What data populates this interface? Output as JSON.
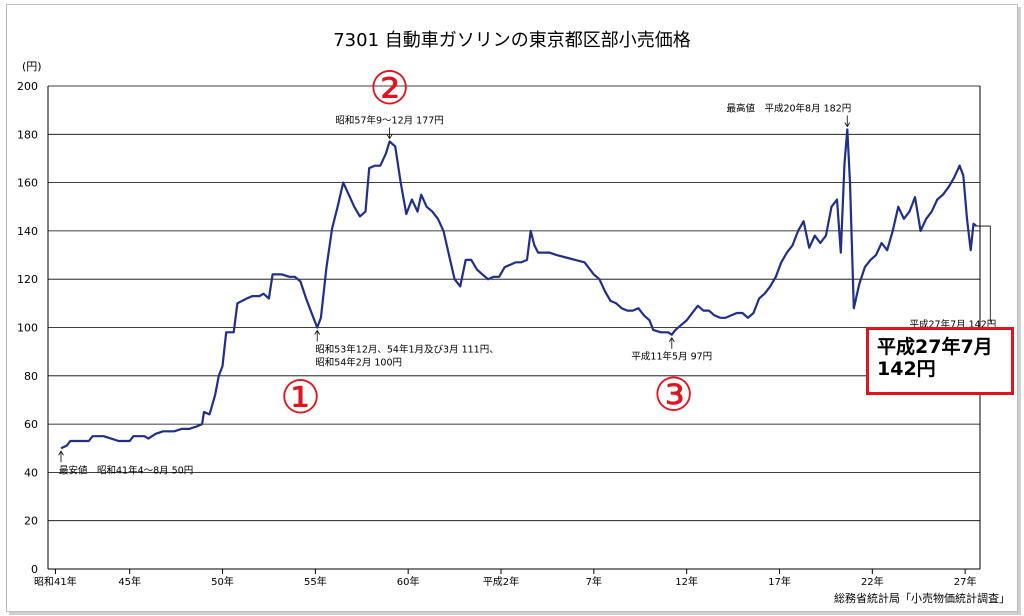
{
  "chart_data": {
    "type": "line",
    "title": "7301 自動車ガソリンの東京都区部小売価格",
    "ylabel": "(円)",
    "ylim": [
      0,
      200
    ],
    "yticks": [
      "0",
      "20",
      "40",
      "60",
      "80",
      "100",
      "120",
      "140",
      "160",
      "180",
      "200"
    ],
    "xticks": [
      {
        "t": 1966.0,
        "label": "昭和41年"
      },
      {
        "t": 1970.0,
        "label": "45年"
      },
      {
        "t": 1975.0,
        "label": "50年"
      },
      {
        "t": 1980.0,
        "label": "55年"
      },
      {
        "t": 1985.0,
        "label": "60年"
      },
      {
        "t": 1990.0,
        "label": "平成2年"
      },
      {
        "t": 1995.0,
        "label": "7年"
      },
      {
        "t": 2000.0,
        "label": "12年"
      },
      {
        "t": 2005.0,
        "label": "17年"
      },
      {
        "t": 2010.0,
        "label": "22年"
      },
      {
        "t": 2015.0,
        "label": "27年"
      }
    ],
    "grid": true,
    "line_color": "#1f2f8a",
    "series": [
      {
        "values": [
          [
            1966.3,
            50
          ],
          [
            1966.6,
            51
          ],
          [
            1966.8,
            53
          ],
          [
            1967.2,
            53
          ],
          [
            1967.8,
            53
          ],
          [
            1968.0,
            55
          ],
          [
            1968.6,
            55
          ],
          [
            1969.0,
            54
          ],
          [
            1969.4,
            53
          ],
          [
            1970.0,
            53
          ],
          [
            1970.2,
            55
          ],
          [
            1970.8,
            55
          ],
          [
            1971.0,
            54
          ],
          [
            1971.4,
            56
          ],
          [
            1971.8,
            57
          ],
          [
            1972.4,
            57
          ],
          [
            1972.8,
            58
          ],
          [
            1973.2,
            58
          ],
          [
            1973.6,
            59
          ],
          [
            1973.9,
            60
          ],
          [
            1974.0,
            65
          ],
          [
            1974.3,
            64
          ],
          [
            1974.6,
            72
          ],
          [
            1974.8,
            80
          ],
          [
            1975.0,
            84
          ],
          [
            1975.2,
            98
          ],
          [
            1975.6,
            98
          ],
          [
            1975.8,
            110
          ],
          [
            1976.3,
            112
          ],
          [
            1976.6,
            113
          ],
          [
            1977.0,
            113
          ],
          [
            1977.2,
            114
          ],
          [
            1977.5,
            112
          ],
          [
            1977.7,
            122
          ],
          [
            1978.2,
            122
          ],
          [
            1978.6,
            121
          ],
          [
            1978.9,
            121
          ],
          [
            1979.2,
            119
          ],
          [
            1979.5,
            112
          ],
          [
            1979.8,
            106
          ],
          [
            1980.1,
            100
          ],
          [
            1980.3,
            104
          ],
          [
            1980.6,
            125
          ],
          [
            1980.9,
            141
          ],
          [
            1981.2,
            150
          ],
          [
            1981.5,
            160
          ],
          [
            1981.8,
            155
          ],
          [
            1982.1,
            150
          ],
          [
            1982.4,
            146
          ],
          [
            1982.7,
            148
          ],
          [
            1982.9,
            166
          ],
          [
            1983.2,
            167
          ],
          [
            1983.5,
            167
          ],
          [
            1983.8,
            172
          ],
          [
            1984.0,
            177
          ],
          [
            1984.3,
            175
          ],
          [
            1984.6,
            160
          ],
          [
            1984.9,
            147
          ],
          [
            1985.2,
            153
          ],
          [
            1985.5,
            148
          ],
          [
            1985.7,
            155
          ],
          [
            1986.0,
            150
          ],
          [
            1986.3,
            148
          ],
          [
            1986.6,
            145
          ],
          [
            1986.9,
            140
          ],
          [
            1987.2,
            130
          ],
          [
            1987.5,
            120
          ],
          [
            1987.8,
            117
          ],
          [
            1988.1,
            128
          ],
          [
            1988.4,
            128
          ],
          [
            1988.7,
            124
          ],
          [
            1989.0,
            122
          ],
          [
            1989.3,
            120
          ],
          [
            1989.6,
            121
          ],
          [
            1989.9,
            121
          ],
          [
            1990.2,
            125
          ],
          [
            1990.5,
            126
          ],
          [
            1990.8,
            127
          ],
          [
            1991.1,
            127
          ],
          [
            1991.4,
            128
          ],
          [
            1991.6,
            140
          ],
          [
            1991.8,
            134
          ],
          [
            1992.0,
            131
          ],
          [
            1992.6,
            131
          ],
          [
            1993.0,
            130
          ],
          [
            1993.5,
            129
          ],
          [
            1994.0,
            128
          ],
          [
            1994.5,
            127
          ],
          [
            1995.0,
            122
          ],
          [
            1995.3,
            120
          ],
          [
            1995.6,
            115
          ],
          [
            1995.9,
            111
          ],
          [
            1996.2,
            110
          ],
          [
            1996.5,
            108
          ],
          [
            1996.8,
            107
          ],
          [
            1997.1,
            107
          ],
          [
            1997.4,
            108
          ],
          [
            1997.7,
            105
          ],
          [
            1998.0,
            103
          ],
          [
            1998.2,
            99
          ],
          [
            1998.6,
            98
          ],
          [
            1999.0,
            98
          ],
          [
            1999.2,
            97
          ],
          [
            1999.4,
            99
          ],
          [
            1999.7,
            101
          ],
          [
            2000.0,
            103
          ],
          [
            2000.3,
            106
          ],
          [
            2000.6,
            109
          ],
          [
            2000.9,
            107
          ],
          [
            2001.2,
            107
          ],
          [
            2001.5,
            105
          ],
          [
            2001.8,
            104
          ],
          [
            2002.1,
            104
          ],
          [
            2002.4,
            105
          ],
          [
            2002.7,
            106
          ],
          [
            2003.0,
            106
          ],
          [
            2003.3,
            104
          ],
          [
            2003.6,
            106
          ],
          [
            2003.9,
            112
          ],
          [
            2004.2,
            114
          ],
          [
            2004.5,
            117
          ],
          [
            2004.8,
            121
          ],
          [
            2005.1,
            127
          ],
          [
            2005.4,
            131
          ],
          [
            2005.7,
            134
          ],
          [
            2006.0,
            140
          ],
          [
            2006.3,
            144
          ],
          [
            2006.6,
            133
          ],
          [
            2006.9,
            138
          ],
          [
            2007.2,
            135
          ],
          [
            2007.5,
            138
          ],
          [
            2007.8,
            150
          ],
          [
            2008.1,
            153
          ],
          [
            2008.3,
            131
          ],
          [
            2008.5,
            168
          ],
          [
            2008.65,
            182
          ],
          [
            2008.8,
            160
          ],
          [
            2009.0,
            108
          ],
          [
            2009.3,
            118
          ],
          [
            2009.6,
            125
          ],
          [
            2009.9,
            128
          ],
          [
            2010.2,
            130
          ],
          [
            2010.5,
            135
          ],
          [
            2010.8,
            132
          ],
          [
            2011.1,
            140
          ],
          [
            2011.4,
            150
          ],
          [
            2011.7,
            145
          ],
          [
            2012.0,
            148
          ],
          [
            2012.3,
            154
          ],
          [
            2012.6,
            140
          ],
          [
            2012.9,
            145
          ],
          [
            2013.2,
            148
          ],
          [
            2013.5,
            153
          ],
          [
            2013.8,
            155
          ],
          [
            2014.1,
            158
          ],
          [
            2014.4,
            162
          ],
          [
            2014.7,
            167
          ],
          [
            2014.9,
            163
          ],
          [
            2015.1,
            145
          ],
          [
            2015.3,
            132
          ],
          [
            2015.45,
            143
          ],
          [
            2015.6,
            142
          ]
        ]
      }
    ],
    "annotations": [
      {
        "t": 1966.3,
        "v": 50,
        "arrow": "up",
        "lines": [
          "最安値　昭和41年4～8月 50円"
        ],
        "anchor": "start"
      },
      {
        "t": 1980.1,
        "v": 100,
        "arrow": "up",
        "lines": [
          "昭和53年12月、54年1月及び3月 111円、",
          "昭和54年2月 100円"
        ],
        "anchor": "start"
      },
      {
        "t": 1984.0,
        "v": 177,
        "arrow": "down",
        "lines": [
          "昭和57年9～12月 177円"
        ],
        "anchor": "middle"
      },
      {
        "t": 1999.2,
        "v": 97,
        "arrow": "up",
        "lines": [
          "平成11年5月 97円"
        ],
        "anchor": "middle"
      },
      {
        "t": 2008.65,
        "v": 182,
        "arrow": "down",
        "lines": [
          "最高値　平成20年8月 182円"
        ],
        "anchor": "end"
      },
      {
        "t": 2015.6,
        "v": 142,
        "arrow": "none",
        "lines": [
          "平成27年7月 142円"
        ],
        "anchor": "end"
      }
    ],
    "markers": [
      {
        "label": "①",
        "t": 1979.2,
        "v": 72
      },
      {
        "label": "②",
        "t": 1984.0,
        "v": 200
      },
      {
        "label": "③",
        "t": 1999.3,
        "v": 73
      }
    ],
    "marker_color": "#e0141e"
  },
  "callout": {
    "line1": "平成27年7月",
    "line2": "142円"
  },
  "source": "総務省統計局「小売物価統計調査」"
}
